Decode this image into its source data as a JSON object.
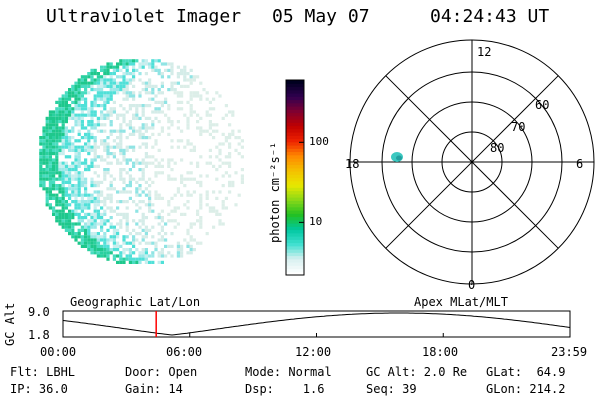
{
  "header": {
    "title": "Ultraviolet Imager",
    "date": "05 May 07",
    "time": "04:24:43 UT"
  },
  "colorbar": {
    "label": "photon cm⁻²s⁻¹",
    "ticks": [
      {
        "value": 100,
        "label": "100"
      },
      {
        "value": 10,
        "label": "10"
      }
    ],
    "scale": "log",
    "colors": [
      "#ffffff",
      "#d8f0f0",
      "#40e0d0",
      "#00c8a0",
      "#22c022",
      "#88d818",
      "#e8e800",
      "#f4c000",
      "#ff8800",
      "#ee2200",
      "#c00000",
      "#800030",
      "#300050",
      "#000020"
    ]
  },
  "polar": {
    "mlt_labels": {
      "top": "12",
      "left": "18",
      "right": "6",
      "bottom": "0"
    },
    "lat_labels": [
      "60",
      "70",
      "80"
    ]
  },
  "timeline": {
    "left_label": "Geographic Lat/Lon",
    "right_label": "Apex MLat/MLT",
    "yaxis_label": "GC Alt",
    "ytick_top": "9.0",
    "ytick_bottom": "1.8",
    "xticks": [
      "00:00",
      "06:00",
      "12:00",
      "18:00",
      "23:59"
    ],
    "current_time_fraction": 0.1838,
    "marker_color": "#ff0000"
  },
  "status": {
    "row1": [
      {
        "label": "Flt: LBHL"
      },
      {
        "label": "Door: Open"
      },
      {
        "label": "Mode: Normal"
      },
      {
        "label": "GC Alt: 2.0 Re"
      },
      {
        "label": "GLat:  64.9"
      }
    ],
    "row2": [
      {
        "label": "IP: 36.0"
      },
      {
        "label": "Gain: 14"
      },
      {
        "label": "Dsp:    1.6"
      },
      {
        "label": "Seq: 39"
      },
      {
        "label": "GLon: 214.2"
      }
    ]
  }
}
